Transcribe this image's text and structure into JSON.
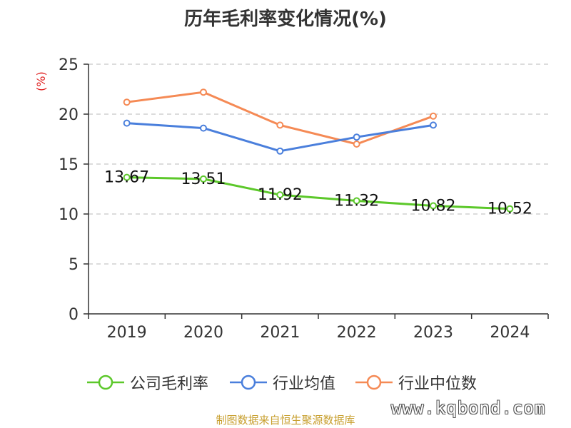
{
  "chart_data": {
    "type": "line",
    "title": "历年毛利率变化情况(%)",
    "ylabel": "(%)",
    "categories": [
      "2019",
      "2020",
      "2021",
      "2022",
      "2023",
      "2024"
    ],
    "ylim": [
      0,
      25
    ],
    "yticks": [
      0,
      5,
      10,
      15,
      20,
      25
    ],
    "grid": true,
    "legend_position": "bottom",
    "series": [
      {
        "name": "公司毛利率",
        "color": "#5cc82a",
        "values": [
          13.67,
          13.51,
          11.92,
          11.32,
          10.82,
          10.52
        ],
        "labels": [
          "13.67",
          "13.51",
          "11.92",
          "11.32",
          "10.82",
          "10.52"
        ]
      },
      {
        "name": "行业均值",
        "color": "#4a7fdc",
        "values": [
          19.1,
          18.6,
          16.3,
          17.7,
          18.9,
          null
        ]
      },
      {
        "name": "行业中位数",
        "color": "#f58a55",
        "values": [
          21.2,
          22.2,
          18.9,
          17.0,
          19.8,
          null
        ]
      }
    ]
  },
  "legend": [
    {
      "label": "公司毛利率",
      "color": "#5cc82a"
    },
    {
      "label": "行业均值",
      "color": "#4a7fdc"
    },
    {
      "label": "行业中位数",
      "color": "#f58a55"
    }
  ],
  "source": "制图数据来自恒生聚源数据库",
  "watermark": "www.kqbond.com"
}
